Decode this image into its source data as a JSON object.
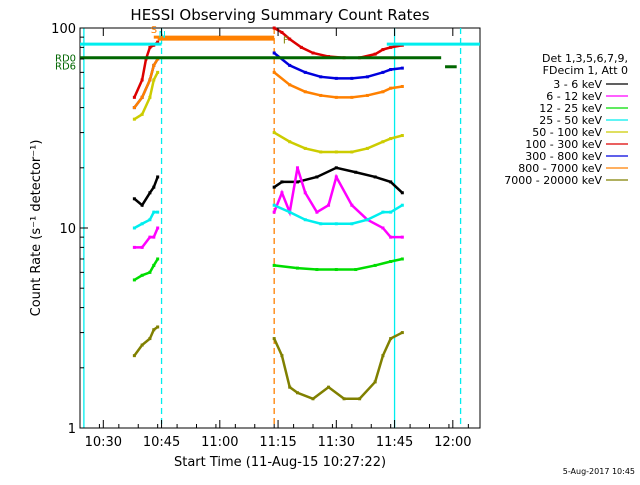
{
  "chart_data": {
    "type": "line",
    "title": "HESSI Observing Summary Count Rates",
    "xlabel": "Start Time (11-Aug-15 10:27:22)",
    "ylabel": "Count Rate (s⁻¹ detector⁻¹)",
    "y_scale": "log",
    "ylim": [
      1,
      100
    ],
    "xlim": [
      "10:24",
      "12:07"
    ],
    "x_ticks": [
      "10:30",
      "10:45",
      "11:00",
      "11:15",
      "11:30",
      "11:45",
      "12:00"
    ],
    "y_ticks": [
      "1",
      "10",
      "100"
    ],
    "legend_title": [
      "Det 1,3,5,6,7,9,",
      "FDecim 1, Att 0"
    ],
    "legend_placement": "right",
    "footer": "5-Aug-2017 10:45",
    "series": [
      {
        "name": "3 - 6 keV",
        "color": "#000000",
        "x": [
          "10:38",
          "10:40",
          "10:42",
          "10:43",
          "10:44",
          "11:14",
          "11:16",
          "11:20",
          "11:25",
          "11:30",
          "11:35",
          "11:40",
          "11:44",
          "11:47"
        ],
        "y": [
          14,
          13,
          15,
          16,
          18,
          16,
          17,
          17,
          18,
          20,
          19,
          18,
          17,
          15
        ]
      },
      {
        "name": "6 - 12 keV",
        "color": "#ff00ff",
        "x": [
          "10:38",
          "10:40",
          "10:42",
          "10:43",
          "10:44",
          "11:14",
          "11:16",
          "11:18",
          "11:20",
          "11:22",
          "11:25",
          "11:28",
          "11:30",
          "11:34",
          "11:38",
          "11:42",
          "11:44",
          "11:47"
        ],
        "y": [
          8,
          8,
          9,
          9,
          10,
          12,
          15,
          12,
          20,
          15,
          12,
          13,
          18,
          13,
          11,
          10,
          9,
          9
        ]
      },
      {
        "name": "12 - 25 keV",
        "color": "#00dd00",
        "x": [
          "10:38",
          "10:40",
          "10:42",
          "10:43",
          "10:44",
          "11:14",
          "11:20",
          "11:25",
          "11:30",
          "11:35",
          "11:40",
          "11:44",
          "11:47"
        ],
        "y": [
          5.5,
          5.8,
          6,
          6.5,
          7,
          6.5,
          6.3,
          6.2,
          6.2,
          6.2,
          6.5,
          6.8,
          7
        ]
      },
      {
        "name": "25 - 50 keV",
        "color": "#00eeee",
        "x": [
          "10:38",
          "10:40",
          "10:42",
          "10:43",
          "10:44",
          "11:14",
          "11:18",
          "11:22",
          "11:26",
          "11:30",
          "11:34",
          "11:38",
          "11:42",
          "11:44",
          "11:47"
        ],
        "y": [
          10,
          10.5,
          11,
          12,
          12,
          13,
          12,
          11,
          10.5,
          10.5,
          10.5,
          11,
          12,
          12,
          13
        ]
      },
      {
        "name": "50 - 100 keV",
        "color": "#cccc00",
        "x": [
          "10:38",
          "10:40",
          "10:42",
          "10:43",
          "10:44",
          "11:14",
          "11:18",
          "11:22",
          "11:26",
          "11:30",
          "11:34",
          "11:38",
          "11:42",
          "11:44",
          "11:47"
        ],
        "y": [
          35,
          37,
          45,
          55,
          60,
          30,
          27,
          25,
          24,
          24,
          24,
          25,
          27,
          28,
          29
        ]
      },
      {
        "name": "100 - 300 keV",
        "color": "#dd0000",
        "x": [
          "10:38",
          "10:40",
          "10:41",
          "10:42",
          "10:43",
          "10:44",
          "11:14",
          "11:16",
          "11:18",
          "11:21",
          "11:24",
          "11:28",
          "11:32",
          "11:36",
          "11:40",
          "11:42",
          "11:44",
          "11:47"
        ],
        "y": [
          45,
          55,
          70,
          80,
          82,
          85,
          100,
          95,
          88,
          80,
          75,
          72,
          71,
          71,
          74,
          78,
          80,
          82
        ]
      },
      {
        "name": "300 - 800 keV",
        "color": "#0000dd",
        "x": [
          "10:38",
          "10:40",
          "10:42",
          "10:43",
          "10:44",
          "11:14",
          "11:18",
          "11:22",
          "11:26",
          "11:30",
          "11:34",
          "11:38",
          "11:42",
          "11:44",
          "11:47"
        ],
        "y": [
          40,
          45,
          55,
          65,
          70,
          75,
          65,
          60,
          57,
          56,
          56,
          57,
          60,
          62,
          63
        ]
      },
      {
        "name": "800 - 7000 keV",
        "color": "#ff8000",
        "x": [
          "10:38",
          "10:40",
          "10:42",
          "10:43",
          "10:44",
          "11:14",
          "11:18",
          "11:22",
          "11:26",
          "11:30",
          "11:34",
          "11:38",
          "11:42",
          "11:44",
          "11:47"
        ],
        "y": [
          40,
          45,
          55,
          65,
          70,
          60,
          52,
          48,
          46,
          45,
          45,
          46,
          48,
          50,
          51
        ]
      },
      {
        "name": "7000 - 20000 keV",
        "color": "#808000",
        "x": [
          "10:38",
          "10:40",
          "10:42",
          "10:43",
          "10:44",
          "11:14",
          "11:16",
          "11:18",
          "11:20",
          "11:24",
          "11:28",
          "11:32",
          "11:36",
          "11:40",
          "11:42",
          "11:44",
          "11:47"
        ],
        "y": [
          2.3,
          2.6,
          2.8,
          3.1,
          3.2,
          2.8,
          2.3,
          1.6,
          1.5,
          1.4,
          1.6,
          1.4,
          1.4,
          1.7,
          2.3,
          2.8,
          3
        ]
      }
    ],
    "flags": [
      {
        "label": "S",
        "color": "#ff8000",
        "x_start": "10:43",
        "x_end": "11:14",
        "y": 90
      },
      {
        "label": "F",
        "color": "#808000",
        "x_start": "11:17",
        "x_end": "11:17",
        "y": 80
      },
      {
        "label": "N",
        "color": "#00eeee",
        "x_start": "10:45",
        "x_end": "10:45",
        "y": 85
      },
      {
        "label": "RD0",
        "color": "#006600",
        "x_start": "10:24",
        "x_end": "11:57",
        "y": 71
      },
      {
        "label": "RD6",
        "color": "#006600",
        "x_start": "10:24",
        "x_end": "10:24",
        "y": 65
      },
      {
        "label": "",
        "color": "#00eeee",
        "x_start": "10:24",
        "x_end": "10:45",
        "y": 83
      },
      {
        "label": "",
        "color": "#00eeee",
        "x_start": "11:43",
        "x_end": "12:07",
        "y": 83
      },
      {
        "label": "",
        "color": "#ff8000",
        "x_start": "10:44",
        "x_end": "11:14",
        "y": 88
      },
      {
        "label": "",
        "color": "#006600",
        "x_start": "11:58",
        "x_end": "12:01",
        "y": 64
      }
    ],
    "vertical_lines": [
      {
        "x": "10:25",
        "color": "#00eeee",
        "style": "solid"
      },
      {
        "x": "10:45",
        "color": "#00eeee",
        "style": "dashed"
      },
      {
        "x": "11:14",
        "color": "#ff8000",
        "style": "dashed"
      },
      {
        "x": "11:45",
        "color": "#00eeee",
        "style": "solid"
      },
      {
        "x": "12:02",
        "color": "#00eeee",
        "style": "dashed"
      }
    ]
  }
}
